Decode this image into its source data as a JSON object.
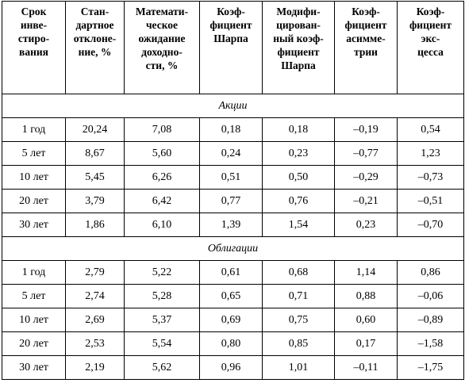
{
  "table": {
    "columns": [
      "Срок\nинве-\nстиро-\nвания",
      "Стан-\nдартное\nотклоне-\nние, %",
      "Математи-\nческое\nожидание\nдоходно-\nсти, %",
      "Коэф-\nфициент\nШарпа",
      "Модифи-\nцирован-\nный коэф-\nфициент\nШарпа",
      "Коэф-\nфициент\nасимме-\nтрии",
      "Коэф-\nфициент\nэкс-\nцесса"
    ],
    "sections": [
      {
        "title": "Акции",
        "rows": [
          [
            "1 год",
            "20,24",
            "7,08",
            "0,18",
            "0,18",
            "–0,19",
            "0,54"
          ],
          [
            "5 лет",
            "8,67",
            "5,60",
            "0,24",
            "0,23",
            "–0,77",
            "1,23"
          ],
          [
            "10 лет",
            "5,45",
            "6,26",
            "0,51",
            "0,50",
            "–0,29",
            "–0,73"
          ],
          [
            "20 лет",
            "3,79",
            "6,42",
            "0,77",
            "0,76",
            "–0,21",
            "–0,51"
          ],
          [
            "30 лет",
            "1,86",
            "6,10",
            "1,39",
            "1,54",
            "0,23",
            "–0,70"
          ]
        ]
      },
      {
        "title": "Облигации",
        "rows": [
          [
            "1 год",
            "2,79",
            "5,22",
            "0,61",
            "0,68",
            "1,14",
            "0,86"
          ],
          [
            "5 лет",
            "2,74",
            "5,28",
            "0,65",
            "0,71",
            "0,88",
            "–0,06"
          ],
          [
            "10 лет",
            "2,69",
            "5,37",
            "0,69",
            "0,75",
            "0,60",
            "–0,89"
          ],
          [
            "20 лет",
            "2,53",
            "5,54",
            "0,80",
            "0,85",
            "0,17",
            "–1,58"
          ],
          [
            "30 лет",
            "2,19",
            "5,62",
            "0,96",
            "1,01",
            "–0,11",
            "–1,75"
          ]
        ]
      }
    ]
  }
}
